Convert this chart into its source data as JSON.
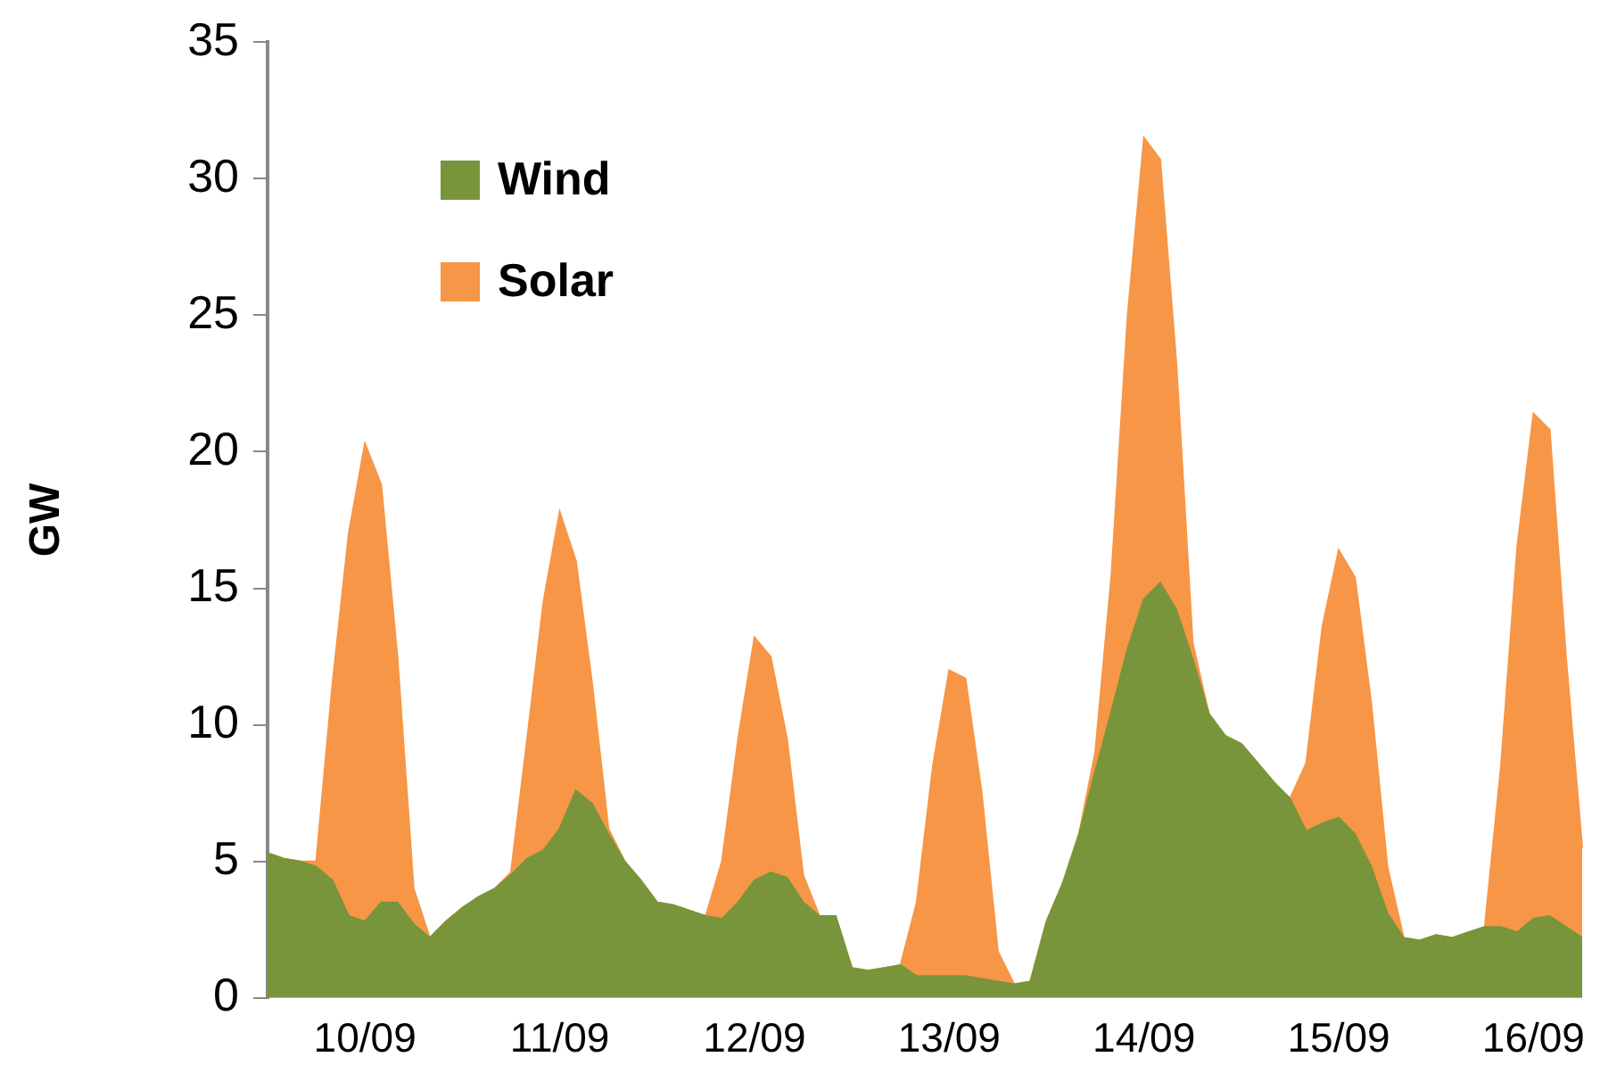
{
  "chart_data": {
    "type": "area",
    "stacked": true,
    "ylabel": "GW",
    "categories": [
      null,
      null,
      null,
      null,
      null,
      null,
      "10/09",
      null,
      null,
      null,
      null,
      null,
      null,
      null,
      null,
      null,
      null,
      null,
      "11/09",
      null,
      null,
      null,
      null,
      null,
      null,
      null,
      null,
      null,
      null,
      null,
      "12/09",
      null,
      null,
      null,
      null,
      null,
      null,
      null,
      null,
      null,
      null,
      null,
      "13/09",
      null,
      null,
      null,
      null,
      null,
      null,
      null,
      null,
      null,
      null,
      null,
      "14/09",
      null,
      null,
      null,
      null,
      null,
      null,
      null,
      null,
      null,
      null,
      null,
      "15/09",
      null,
      null,
      null,
      null,
      null,
      null,
      null,
      null,
      null,
      null,
      null,
      "16/09",
      null,
      null,
      null
    ],
    "series": [
      {
        "name": "Wind",
        "color": "#78953b",
        "values": [
          5.3,
          5.1,
          5.0,
          4.8,
          4.3,
          3.0,
          2.8,
          3.5,
          3.5,
          2.7,
          2.2,
          2.8,
          3.3,
          3.7,
          4.0,
          4.5,
          5.1,
          5.4,
          6.2,
          7.6,
          7.1,
          6.0,
          5.0,
          4.3,
          3.5,
          3.4,
          3.2,
          3.0,
          2.9,
          3.5,
          4.3,
          4.6,
          4.4,
          3.5,
          3.0,
          3.0,
          1.1,
          1.0,
          1.1,
          1.2,
          0.8,
          0.8,
          0.8,
          0.8,
          0.7,
          0.6,
          0.5,
          0.6,
          2.8,
          4.2,
          6.0,
          8.3,
          10.5,
          12.8,
          14.6,
          15.2,
          14.2,
          12.4,
          10.4,
          9.6,
          9.3,
          8.6,
          7.9,
          7.3,
          6.1,
          6.4,
          6.6,
          6.0,
          4.8,
          3.1,
          2.2,
          2.1,
          2.3,
          2.2,
          2.4,
          2.6,
          2.6,
          2.4,
          2.9,
          3.0,
          2.6,
          2.2
        ]
      },
      {
        "name": "Solar",
        "color": "#f79646",
        "values": [
          0,
          0,
          0,
          0.2,
          7.2,
          14.0,
          17.5,
          15.3,
          9.0,
          1.3,
          0,
          0,
          0,
          0,
          0,
          0.1,
          4.4,
          9.1,
          11.6,
          8.4,
          4.4,
          0.2,
          0,
          0,
          0,
          0,
          0,
          0,
          2.1,
          6.0,
          8.9,
          7.9,
          5.1,
          1.0,
          0,
          0,
          0,
          0,
          0,
          0,
          2.7,
          7.7,
          11.2,
          10.9,
          6.8,
          1.1,
          0,
          0,
          0,
          0,
          0,
          0.7,
          5.0,
          12.2,
          16.9,
          15.5,
          9.0,
          0.6,
          0,
          0,
          0,
          0,
          0,
          0,
          2.5,
          7.2,
          9.8,
          9.4,
          6.0,
          1.7,
          0,
          0,
          0,
          0,
          0,
          0,
          5.9,
          14.1,
          18.5,
          17.8,
          9.9,
          3.3
        ]
      }
    ],
    "ylim": [
      0,
      35
    ],
    "yticks": [
      0,
      5,
      10,
      15,
      20,
      25,
      30,
      35
    ],
    "grid": false,
    "legend": "top left"
  }
}
